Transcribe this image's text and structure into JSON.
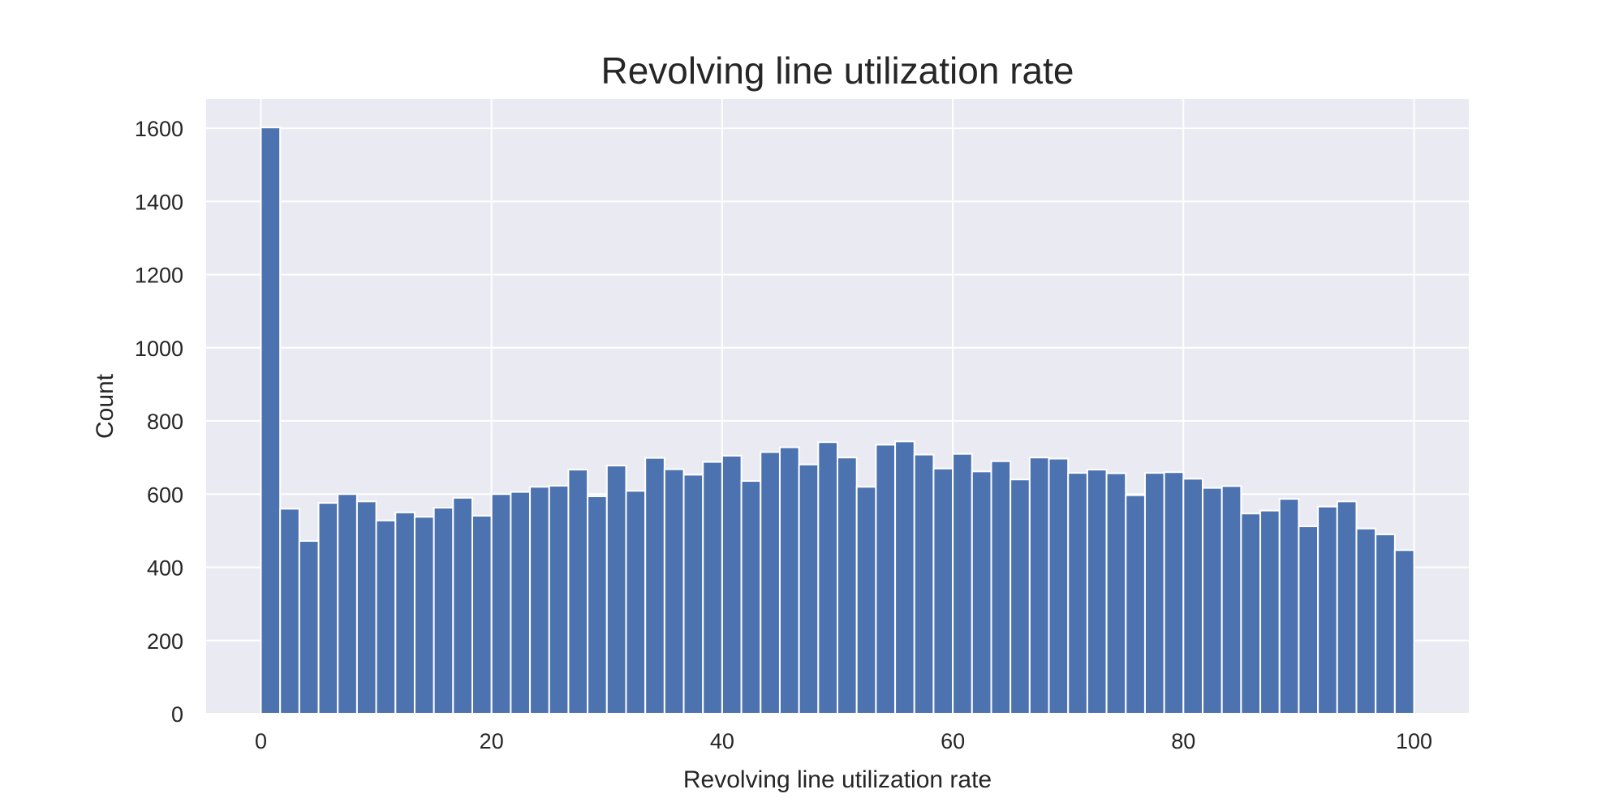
{
  "chart_data": {
    "type": "bar",
    "subtype": "histogram",
    "title": "Revolving line utilization rate",
    "xlabel": "Revolving line utilization rate",
    "ylabel": "Count",
    "xlim": [
      -4.75,
      104.75
    ],
    "ylim": [
      0,
      1680
    ],
    "xticks": [
      0,
      20,
      40,
      60,
      80,
      100
    ],
    "yticks": [
      0,
      200,
      400,
      600,
      800,
      1000,
      1200,
      1400,
      1600
    ],
    "grid": true,
    "legend": "none",
    "bin_start": 0,
    "bin_width": 1.6667,
    "values": [
      1602,
      560,
      472,
      576,
      600,
      580,
      528,
      550,
      538,
      563,
      590,
      541,
      600,
      606,
      620,
      623,
      667,
      594,
      678,
      609,
      699,
      668,
      653,
      688,
      705,
      636,
      715,
      728,
      681,
      742,
      700,
      620,
      735,
      744,
      708,
      670,
      710,
      662,
      690,
      640,
      700,
      697,
      658,
      667,
      657,
      597,
      658,
      660,
      642,
      617,
      622,
      547,
      555,
      587,
      512,
      566,
      580,
      506,
      490,
      447
    ],
    "colors": {
      "bar": "#4c72b0",
      "bar_edge": "#ffffff",
      "plot_background": "#eaeaf2",
      "grid": "#ffffff",
      "text": "#262626"
    }
  }
}
